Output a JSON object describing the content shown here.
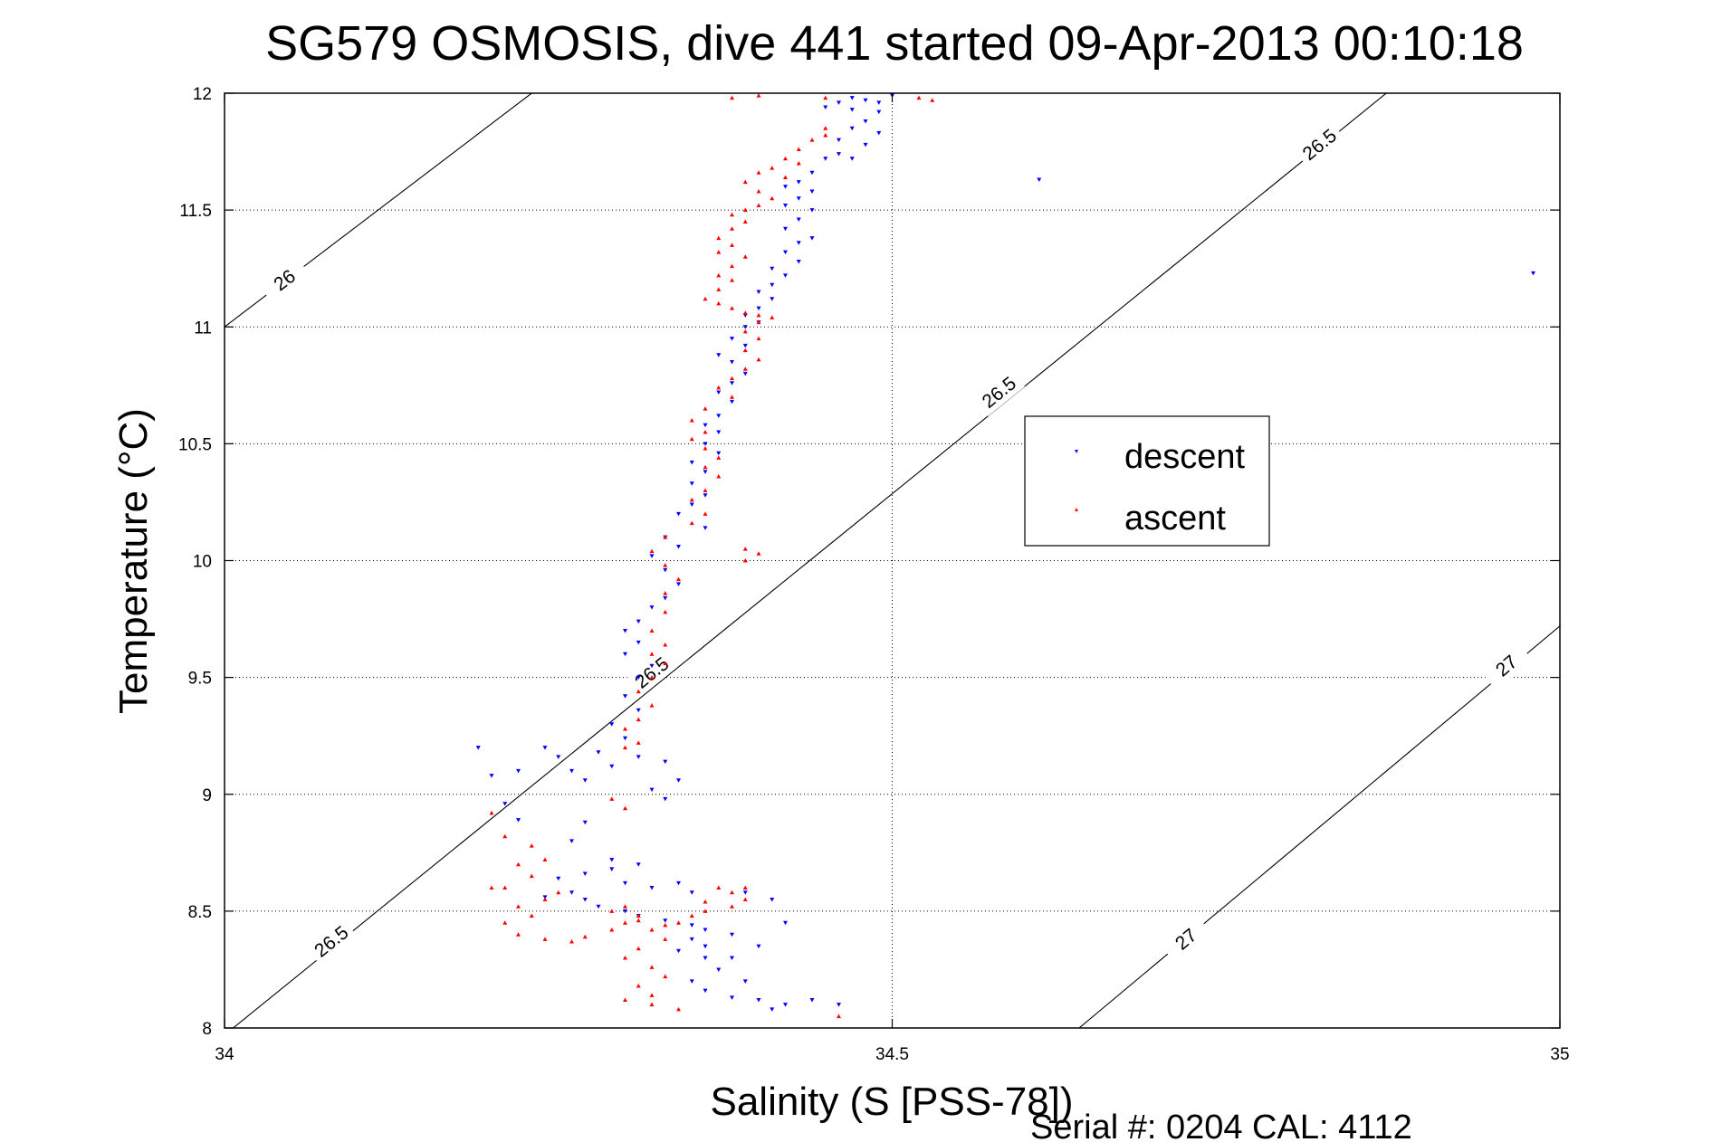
{
  "chart_data": {
    "type": "scatter",
    "title": "SG579 OSMOSIS, dive 441 started 09-Apr-2013 00:10:18",
    "xlabel": "Salinity (S [PSS-78])",
    "ylabel": "Temperature (°C)",
    "xlim": [
      34,
      35
    ],
    "ylim": [
      8,
      12
    ],
    "xticks": [
      "34",
      "34.5",
      "35"
    ],
    "yticks": [
      "8",
      "8.5",
      "9",
      "9.5",
      "10",
      "10.5",
      "11",
      "11.5",
      "12"
    ],
    "grid": true,
    "legend_position": "center-right",
    "footer": "Serial #: 0204  CAL: 4112",
    "isopycnals": [
      {
        "label": "26",
        "points": [
          [
            34.0,
            11.0
          ],
          [
            34.23,
            12.0
          ]
        ],
        "label_at": [
          34.045,
          11.2
        ]
      },
      {
        "label": "26.5",
        "points": [
          [
            34.0,
            7.97
          ],
          [
            34.87,
            12.0
          ]
        ],
        "label_at_list": [
          [
            34.08,
            8.37
          ],
          [
            34.32,
            9.52
          ],
          [
            34.58,
            10.72
          ],
          [
            34.82,
            11.78
          ]
        ]
      },
      {
        "label": "27",
        "points": [
          [
            34.64,
            8.0
          ],
          [
            35.0,
            9.72
          ]
        ],
        "label_at_list": [
          [
            34.72,
            8.38
          ],
          [
            34.96,
            9.55
          ]
        ]
      }
    ],
    "series": [
      {
        "name": "descent",
        "color": "#0000ff",
        "marker": "triangle-down",
        "points": [
          [
            34.47,
            11.98
          ],
          [
            34.48,
            11.97
          ],
          [
            34.49,
            11.96
          ],
          [
            34.46,
            11.96
          ],
          [
            34.5,
            11.99
          ],
          [
            34.47,
            11.93
          ],
          [
            34.45,
            11.94
          ],
          [
            34.49,
            11.92
          ],
          [
            34.48,
            11.88
          ],
          [
            34.47,
            11.85
          ],
          [
            34.49,
            11.83
          ],
          [
            34.46,
            11.8
          ],
          [
            34.48,
            11.78
          ],
          [
            34.46,
            11.74
          ],
          [
            34.45,
            11.72
          ],
          [
            34.47,
            11.72
          ],
          [
            34.44,
            11.66
          ],
          [
            34.43,
            11.62
          ],
          [
            34.42,
            11.6
          ],
          [
            34.44,
            11.58
          ],
          [
            34.43,
            11.55
          ],
          [
            34.42,
            11.52
          ],
          [
            34.44,
            11.5
          ],
          [
            34.43,
            11.46
          ],
          [
            34.42,
            11.42
          ],
          [
            34.44,
            11.38
          ],
          [
            34.43,
            11.36
          ],
          [
            34.42,
            11.32
          ],
          [
            34.43,
            11.28
          ],
          [
            34.41,
            11.25
          ],
          [
            34.42,
            11.22
          ],
          [
            34.41,
            11.18
          ],
          [
            34.4,
            11.15
          ],
          [
            34.41,
            11.12
          ],
          [
            34.4,
            11.08
          ],
          [
            34.39,
            11.05
          ],
          [
            34.4,
            11.02
          ],
          [
            34.39,
            11.0
          ],
          [
            34.38,
            10.95
          ],
          [
            34.39,
            10.92
          ],
          [
            34.37,
            10.88
          ],
          [
            34.38,
            10.85
          ],
          [
            34.39,
            10.8
          ],
          [
            34.38,
            10.76
          ],
          [
            34.37,
            10.72
          ],
          [
            34.38,
            10.68
          ],
          [
            34.37,
            10.62
          ],
          [
            34.36,
            10.58
          ],
          [
            34.37,
            10.55
          ],
          [
            34.36,
            10.5
          ],
          [
            34.37,
            10.46
          ],
          [
            34.35,
            10.42
          ],
          [
            34.36,
            10.38
          ],
          [
            34.35,
            10.33
          ],
          [
            34.36,
            10.28
          ],
          [
            34.35,
            10.24
          ],
          [
            34.34,
            10.2
          ],
          [
            34.36,
            10.14
          ],
          [
            34.33,
            10.1
          ],
          [
            34.34,
            10.06
          ],
          [
            34.32,
            10.02
          ],
          [
            34.33,
            9.96
          ],
          [
            34.34,
            9.9
          ],
          [
            34.33,
            9.84
          ],
          [
            34.32,
            9.8
          ],
          [
            34.31,
            9.74
          ],
          [
            34.3,
            9.7
          ],
          [
            34.31,
            9.65
          ],
          [
            34.3,
            9.6
          ],
          [
            34.32,
            9.55
          ],
          [
            34.31,
            9.5
          ],
          [
            34.3,
            9.42
          ],
          [
            34.31,
            9.36
          ],
          [
            34.29,
            9.3
          ],
          [
            34.3,
            9.24
          ],
          [
            34.28,
            9.18
          ],
          [
            34.25,
            9.16
          ],
          [
            34.24,
            9.2
          ],
          [
            34.26,
            9.1
          ],
          [
            34.27,
            9.06
          ],
          [
            34.22,
            9.1
          ],
          [
            34.2,
            9.08
          ],
          [
            34.19,
            9.2
          ],
          [
            34.29,
            9.12
          ],
          [
            34.31,
            9.16
          ],
          [
            34.33,
            9.14
          ],
          [
            34.34,
            9.06
          ],
          [
            34.33,
            8.98
          ],
          [
            34.32,
            9.02
          ],
          [
            34.21,
            8.96
          ],
          [
            34.22,
            8.89
          ],
          [
            34.27,
            8.88
          ],
          [
            34.26,
            8.8
          ],
          [
            34.29,
            8.72
          ],
          [
            34.31,
            8.7
          ],
          [
            34.29,
            8.68
          ],
          [
            34.27,
            8.66
          ],
          [
            34.25,
            8.64
          ],
          [
            34.3,
            8.62
          ],
          [
            34.32,
            8.6
          ],
          [
            34.34,
            8.62
          ],
          [
            34.35,
            8.58
          ],
          [
            34.26,
            8.58
          ],
          [
            34.27,
            8.55
          ],
          [
            34.24,
            8.56
          ],
          [
            34.28,
            8.52
          ],
          [
            34.3,
            8.5
          ],
          [
            34.31,
            8.48
          ],
          [
            34.33,
            8.46
          ],
          [
            34.35,
            8.44
          ],
          [
            34.36,
            8.42
          ],
          [
            34.38,
            8.4
          ],
          [
            34.35,
            8.38
          ],
          [
            34.36,
            8.35
          ],
          [
            34.34,
            8.33
          ],
          [
            34.36,
            8.3
          ],
          [
            34.37,
            8.25
          ],
          [
            34.35,
            8.2
          ],
          [
            34.36,
            8.16
          ],
          [
            34.38,
            8.13
          ],
          [
            34.4,
            8.12
          ],
          [
            34.42,
            8.1
          ],
          [
            34.44,
            8.12
          ],
          [
            34.46,
            8.1
          ],
          [
            34.41,
            8.08
          ],
          [
            34.39,
            8.2
          ],
          [
            34.38,
            8.3
          ],
          [
            34.4,
            8.35
          ],
          [
            34.42,
            8.45
          ],
          [
            34.41,
            8.55
          ],
          [
            34.39,
            8.58
          ],
          [
            34.61,
            11.63
          ],
          [
            34.98,
            11.23
          ]
        ]
      },
      {
        "name": "ascent",
        "color": "#ff0000",
        "marker": "triangle-up",
        "points": [
          [
            34.38,
            11.98
          ],
          [
            34.4,
            11.99
          ],
          [
            34.45,
            11.98
          ],
          [
            34.52,
            11.98
          ],
          [
            34.53,
            11.97
          ],
          [
            34.45,
            11.85
          ],
          [
            34.45,
            11.82
          ],
          [
            34.44,
            11.8
          ],
          [
            34.43,
            11.76
          ],
          [
            34.42,
            11.72
          ],
          [
            34.41,
            11.68
          ],
          [
            34.43,
            11.7
          ],
          [
            34.4,
            11.66
          ],
          [
            34.42,
            11.64
          ],
          [
            34.39,
            11.62
          ],
          [
            34.4,
            11.58
          ],
          [
            34.41,
            11.55
          ],
          [
            34.4,
            11.52
          ],
          [
            34.39,
            11.5
          ],
          [
            34.38,
            11.48
          ],
          [
            34.39,
            11.45
          ],
          [
            34.38,
            11.42
          ],
          [
            34.37,
            11.38
          ],
          [
            34.38,
            11.35
          ],
          [
            34.37,
            11.32
          ],
          [
            34.39,
            11.3
          ],
          [
            34.38,
            11.26
          ],
          [
            34.37,
            11.22
          ],
          [
            34.38,
            11.2
          ],
          [
            34.37,
            11.16
          ],
          [
            34.36,
            11.12
          ],
          [
            34.37,
            11.1
          ],
          [
            34.38,
            11.08
          ],
          [
            34.39,
            11.06
          ],
          [
            34.4,
            11.05
          ],
          [
            34.41,
            11.04
          ],
          [
            34.4,
            11.02
          ],
          [
            34.39,
            10.98
          ],
          [
            34.4,
            10.95
          ],
          [
            34.39,
            10.9
          ],
          [
            34.4,
            10.86
          ],
          [
            34.39,
            10.82
          ],
          [
            34.38,
            10.78
          ],
          [
            34.37,
            10.74
          ],
          [
            34.38,
            10.7
          ],
          [
            34.36,
            10.65
          ],
          [
            34.35,
            10.6
          ],
          [
            34.36,
            10.55
          ],
          [
            34.35,
            10.52
          ],
          [
            34.36,
            10.48
          ],
          [
            34.37,
            10.44
          ],
          [
            34.36,
            10.4
          ],
          [
            34.37,
            10.36
          ],
          [
            34.36,
            10.3
          ],
          [
            34.35,
            10.26
          ],
          [
            34.36,
            10.2
          ],
          [
            34.35,
            10.16
          ],
          [
            34.33,
            10.1
          ],
          [
            34.32,
            10.04
          ],
          [
            34.39,
            10.05
          ],
          [
            34.4,
            10.03
          ],
          [
            34.39,
            10.0
          ],
          [
            34.33,
            9.98
          ],
          [
            34.34,
            9.92
          ],
          [
            34.33,
            9.86
          ],
          [
            34.33,
            9.78
          ],
          [
            34.32,
            9.7
          ],
          [
            34.33,
            9.64
          ],
          [
            34.32,
            9.6
          ],
          [
            34.33,
            9.56
          ],
          [
            34.32,
            9.5
          ],
          [
            34.31,
            9.44
          ],
          [
            34.32,
            9.38
          ],
          [
            34.31,
            9.32
          ],
          [
            34.3,
            9.28
          ],
          [
            34.31,
            9.22
          ],
          [
            34.3,
            9.2
          ],
          [
            34.29,
            8.98
          ],
          [
            34.3,
            8.94
          ],
          [
            34.2,
            8.92
          ],
          [
            34.21,
            8.82
          ],
          [
            34.23,
            8.78
          ],
          [
            34.24,
            8.72
          ],
          [
            34.22,
            8.7
          ],
          [
            34.23,
            8.65
          ],
          [
            34.21,
            8.6
          ],
          [
            34.25,
            8.58
          ],
          [
            34.24,
            8.55
          ],
          [
            34.22,
            8.52
          ],
          [
            34.23,
            8.48
          ],
          [
            34.21,
            8.45
          ],
          [
            34.22,
            8.4
          ],
          [
            34.24,
            8.38
          ],
          [
            34.26,
            8.37
          ],
          [
            34.27,
            8.39
          ],
          [
            34.29,
            8.42
          ],
          [
            34.3,
            8.45
          ],
          [
            34.31,
            8.48
          ],
          [
            34.29,
            8.5
          ],
          [
            34.3,
            8.52
          ],
          [
            34.31,
            8.46
          ],
          [
            34.33,
            8.44
          ],
          [
            34.34,
            8.45
          ],
          [
            34.35,
            8.48
          ],
          [
            34.36,
            8.5
          ],
          [
            34.38,
            8.52
          ],
          [
            34.39,
            8.55
          ],
          [
            34.38,
            8.58
          ],
          [
            34.37,
            8.6
          ],
          [
            34.39,
            8.6
          ],
          [
            34.36,
            8.54
          ],
          [
            34.32,
            8.42
          ],
          [
            34.33,
            8.38
          ],
          [
            34.31,
            8.34
          ],
          [
            34.3,
            8.3
          ],
          [
            34.32,
            8.26
          ],
          [
            34.33,
            8.22
          ],
          [
            34.31,
            8.18
          ],
          [
            34.32,
            8.14
          ],
          [
            34.3,
            8.12
          ],
          [
            34.32,
            8.1
          ],
          [
            34.34,
            8.08
          ],
          [
            34.46,
            8.05
          ],
          [
            34.2,
            8.6
          ]
        ]
      }
    ]
  }
}
